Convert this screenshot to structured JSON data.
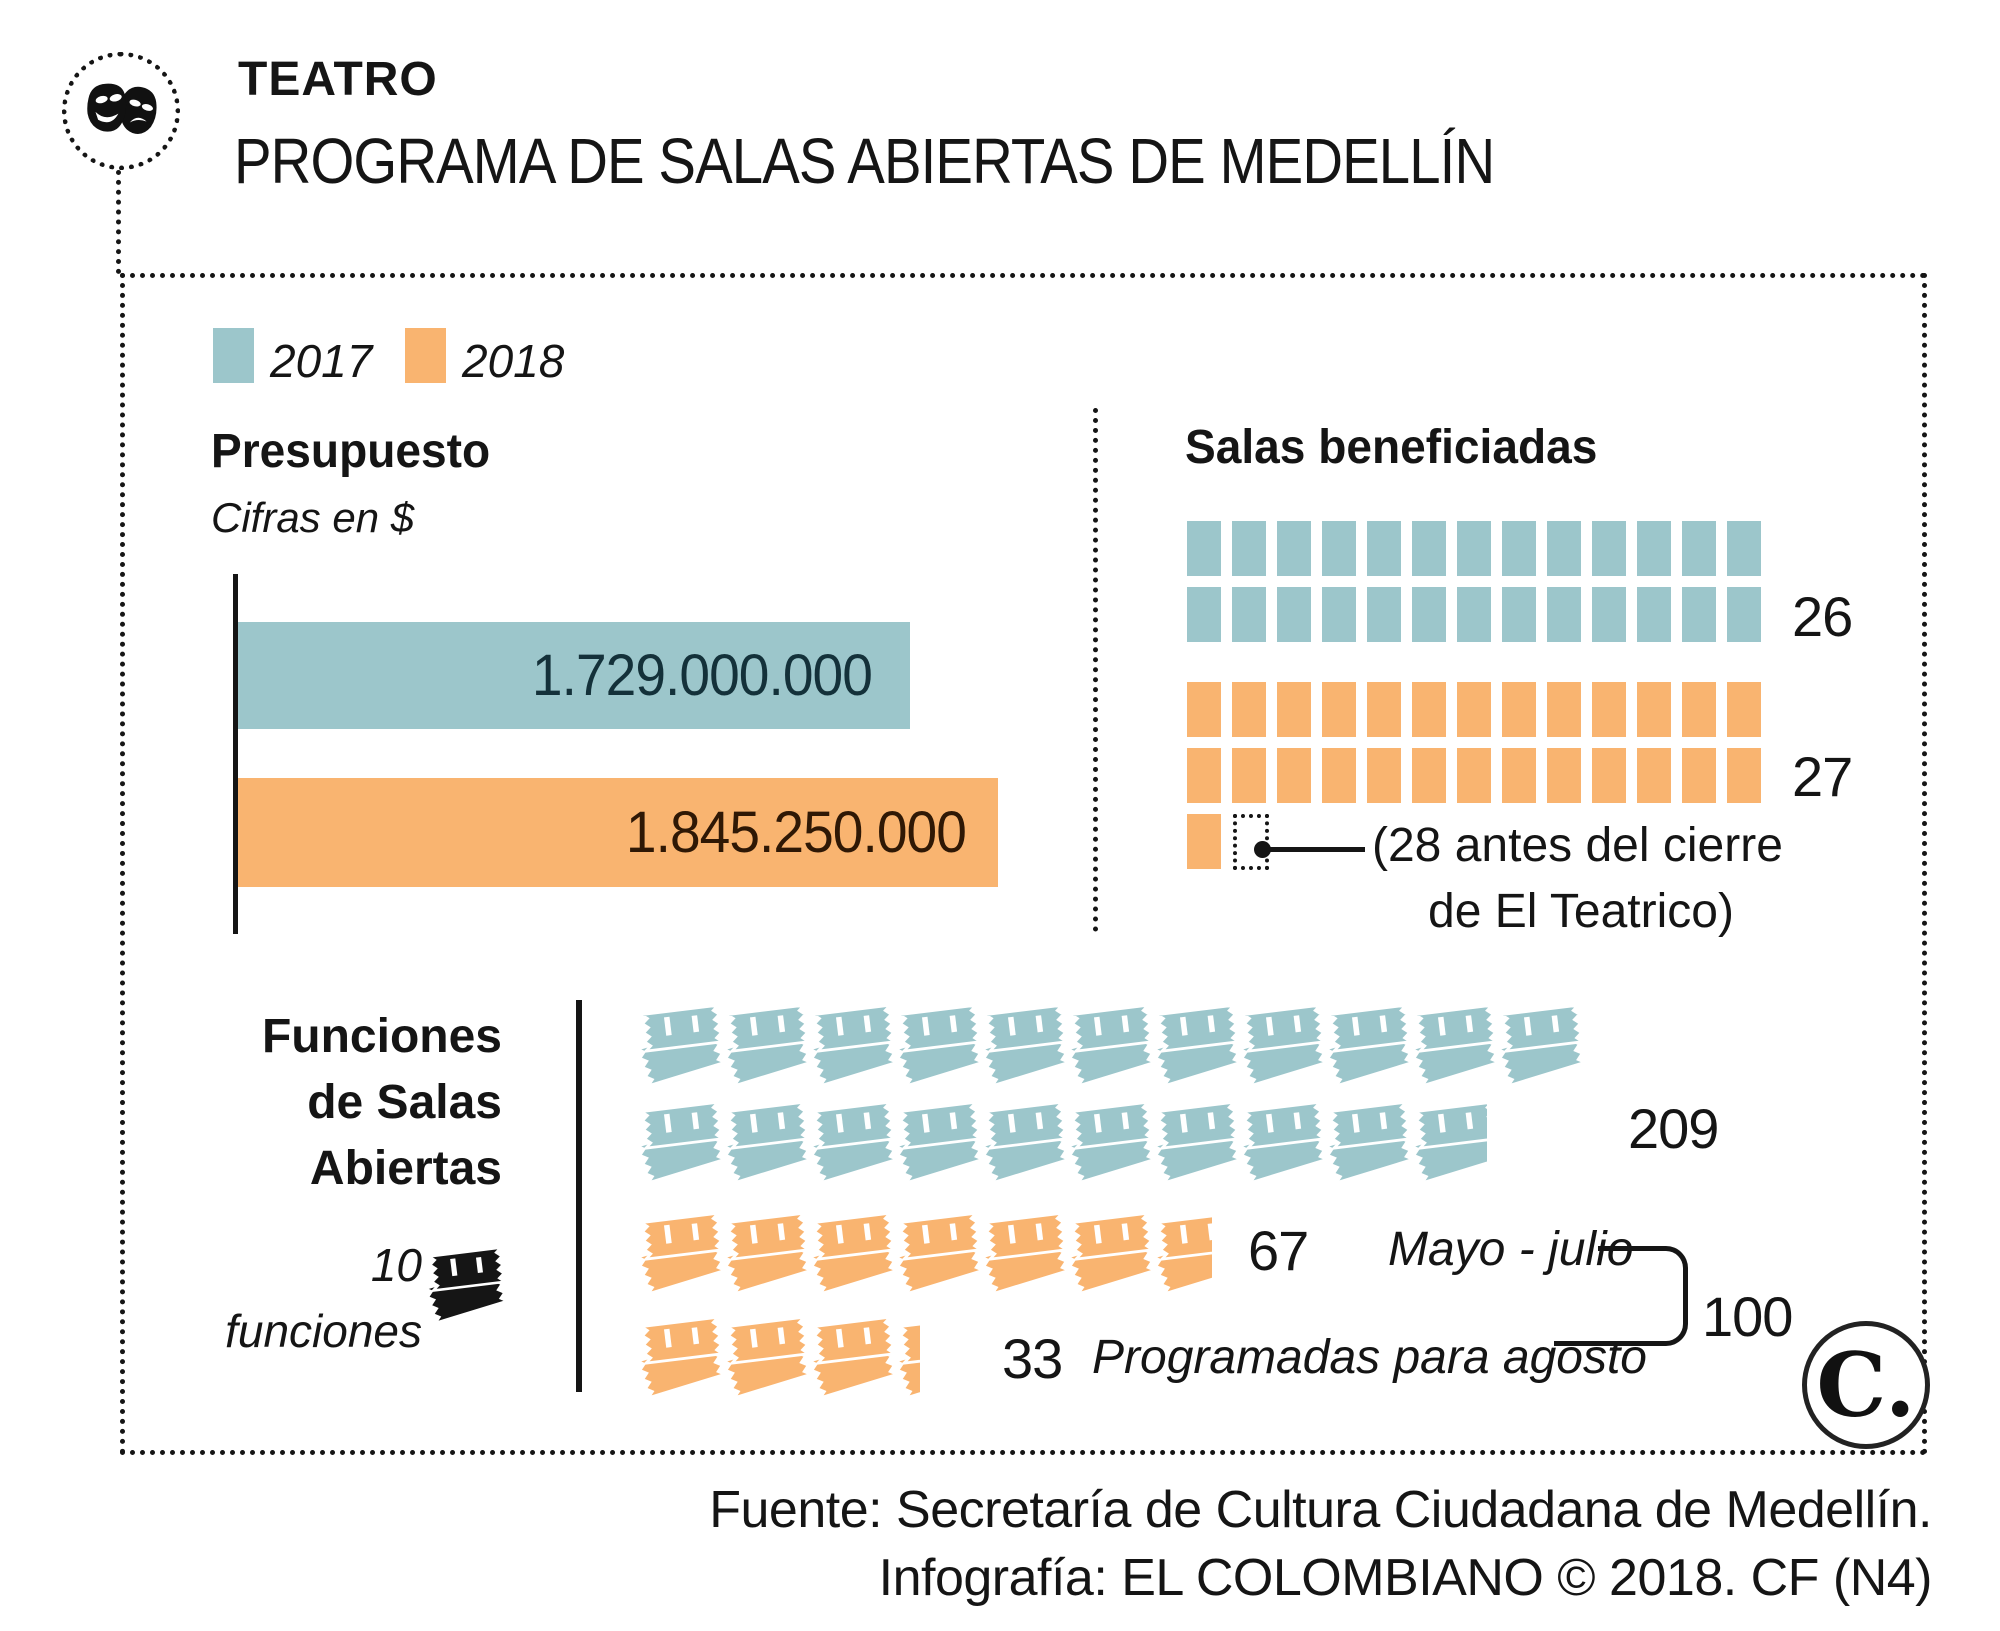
{
  "colors": {
    "teal": "#9cc6cb",
    "orange": "#f9b470",
    "ink": "#151515",
    "bar_text_2017": "#14313a",
    "bar_text_2018": "#2f1805"
  },
  "header": {
    "kicker": "TEATRO",
    "title": "PROGRAMA DE SALAS ABIERTAS DE MEDELLÍN"
  },
  "legend": {
    "y2017": "2017",
    "y2018": "2018"
  },
  "budget": {
    "title": "Presupuesto",
    "subtitle": "Cifras en $",
    "bar_2017_label": "1.729.000.000",
    "bar_2018_label": "1.845.250.000"
  },
  "salas": {
    "title": "Salas beneficiadas",
    "count_2017": 26,
    "label_2017": "26",
    "count_2018": 27,
    "label_2018": "27",
    "note_line1": "(28 antes del cierre",
    "note_line2": "de El Teatrico)"
  },
  "funciones": {
    "title_line1": "Funciones",
    "title_line2": "de Salas",
    "title_line3": "Abiertas",
    "unit_value": "10",
    "unit_word": "funciones",
    "per_ticket": 10,
    "count_2017": 209,
    "label_2017": "209",
    "count_2018_a": 67,
    "label_2018_a": "67",
    "note_2018_a": "Mayo - julio",
    "count_2018_b": 33,
    "label_2018_b": "33",
    "note_2018_b": "Programadas para agosto",
    "total_label": "100"
  },
  "footer": {
    "source": "Fuente: Secretaría de Cultura Ciudadana de Medellín.",
    "credit": "Infografía: EL COLOMBIANO © 2018. CF (N4)"
  },
  "logo_text": "C.",
  "chart_data": [
    {
      "type": "bar",
      "title": "Presupuesto",
      "subtitle": "Cifras en $",
      "orientation": "horizontal",
      "categories": [
        "2017",
        "2018"
      ],
      "values": [
        1729000000,
        1845250000
      ],
      "value_labels": [
        "1.729.000.000",
        "1.845.250.000"
      ],
      "colors": [
        "#9cc6cb",
        "#f9b470"
      ],
      "legend_position": "top-left"
    },
    {
      "type": "pictogram",
      "title": "Salas beneficiadas",
      "icon": "square",
      "unit_per_icon": 1,
      "categories": [
        "2017",
        "2018"
      ],
      "values": [
        26,
        27
      ],
      "annotation": "(28 antes del cierre de El Teatrico)",
      "colors": [
        "#9cc6cb",
        "#f9b470"
      ]
    },
    {
      "type": "pictogram",
      "title": "Funciones de Salas Abiertas",
      "icon": "ticket",
      "unit_per_icon": 10,
      "series": [
        {
          "name": "2017",
          "value": 209
        },
        {
          "name": "2018 Mayo - julio",
          "value": 67
        },
        {
          "name": "2018 Programadas para agosto",
          "value": 33
        }
      ],
      "total_2018": 100,
      "colors": [
        "#9cc6cb",
        "#f9b470",
        "#f9b470"
      ]
    }
  ]
}
